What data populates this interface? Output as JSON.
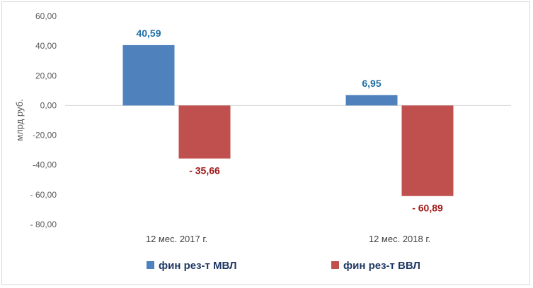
{
  "chart_data": {
    "type": "bar",
    "title": "",
    "xlabel": "",
    "ylabel": "млрд  руб.",
    "ylim": [
      -80,
      60
    ],
    "y_ticks": [
      "60,00",
      "40,00",
      "20,00",
      "0,00",
      "-20,00",
      "-40,00",
      "- 60,00",
      "- 80,00"
    ],
    "categories": [
      "12 мес. 2017 г.",
      "12 мес. 2018 г."
    ],
    "series": [
      {
        "name": "фин рез-т МВЛ",
        "values": [
          40.59,
          6.95
        ],
        "labels": [
          "40,59",
          "6,95"
        ],
        "color": "#4f81bd",
        "label_color": "#1f6fa6"
      },
      {
        "name": "фин рез-т ВВЛ",
        "values": [
          -35.66,
          -60.89
        ],
        "labels": [
          "- 35,66",
          "- 60,89"
        ],
        "color": "#c0504d",
        "label_color": "#a01818"
      }
    ],
    "legend_position": "bottom",
    "grid": false
  }
}
